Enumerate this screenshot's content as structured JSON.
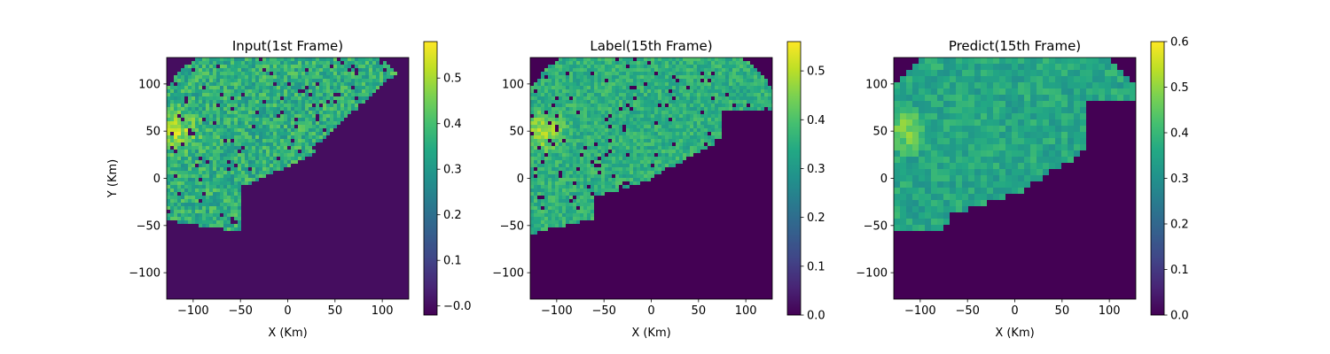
{
  "chart_data": [
    {
      "type": "heatmap",
      "title": "Input(1st Frame)",
      "xlabel": "X (Km)",
      "ylabel": "Y (Km)",
      "xlim": [
        -128,
        128
      ],
      "ylim": [
        -128,
        128
      ],
      "x_ticks": [
        -100,
        -50,
        0,
        50,
        100
      ],
      "y_ticks": [
        100,
        50,
        0,
        -50,
        -100
      ],
      "x_tick_labels": [
        "−100",
        "−50",
        "0",
        "50",
        "100"
      ],
      "y_tick_labels": [
        "100",
        "50",
        "0",
        "−50",
        "−100"
      ],
      "colormap": "viridis",
      "colorbar": {
        "range": [
          -0.02,
          0.58
        ],
        "ticks": [
          0.0,
          0.1,
          0.2,
          0.3,
          0.4,
          0.5
        ],
        "tick_labels": [
          "−0.0",
          "0.1",
          "0.2",
          "0.3",
          "0.4",
          "0.5"
        ]
      },
      "background_value": 0.0,
      "echo_value_range": [
        0.2,
        0.5
      ]
    },
    {
      "type": "heatmap",
      "title": "Label(15th Frame)",
      "xlabel": "X (Km)",
      "ylabel": "",
      "xlim": [
        -128,
        128
      ],
      "ylim": [
        -128,
        128
      ],
      "x_ticks": [
        -100,
        -50,
        0,
        50,
        100
      ],
      "y_ticks": [
        100,
        50,
        0,
        -50,
        -100
      ],
      "x_tick_labels": [
        "−100",
        "−50",
        "0",
        "50",
        "100"
      ],
      "y_tick_labels": [
        "100",
        "50",
        "0",
        "−50",
        "−100"
      ],
      "colormap": "viridis",
      "colorbar": {
        "range": [
          0.0,
          0.56
        ],
        "ticks": [
          0.0,
          0.1,
          0.2,
          0.3,
          0.4,
          0.5
        ],
        "tick_labels": [
          "0.0",
          "0.1",
          "0.2",
          "0.3",
          "0.4",
          "0.5"
        ]
      },
      "background_value": 0.0,
      "echo_value_range": [
        0.25,
        0.45
      ]
    },
    {
      "type": "heatmap",
      "title": "Predict(15th Frame)",
      "xlabel": "X (Km)",
      "ylabel": "",
      "xlim": [
        -128,
        128
      ],
      "ylim": [
        -128,
        128
      ],
      "x_ticks": [
        -100,
        -50,
        0,
        50,
        100
      ],
      "y_ticks": [
        100,
        50,
        0,
        -50,
        -100
      ],
      "x_tick_labels": [
        "−100",
        "−50",
        "0",
        "50",
        "100"
      ],
      "y_tick_labels": [
        "100",
        "50",
        "0",
        "−50",
        "−100"
      ],
      "colormap": "viridis",
      "colorbar": {
        "range": [
          0.0,
          0.6
        ],
        "ticks": [
          0.0,
          0.1,
          0.2,
          0.3,
          0.4,
          0.5,
          0.6
        ],
        "tick_labels": [
          "0.0",
          "0.1",
          "0.2",
          "0.3",
          "0.4",
          "0.5",
          "0.6"
        ]
      },
      "background_value": 0.0,
      "echo_value_range": [
        0.25,
        0.45
      ]
    }
  ]
}
